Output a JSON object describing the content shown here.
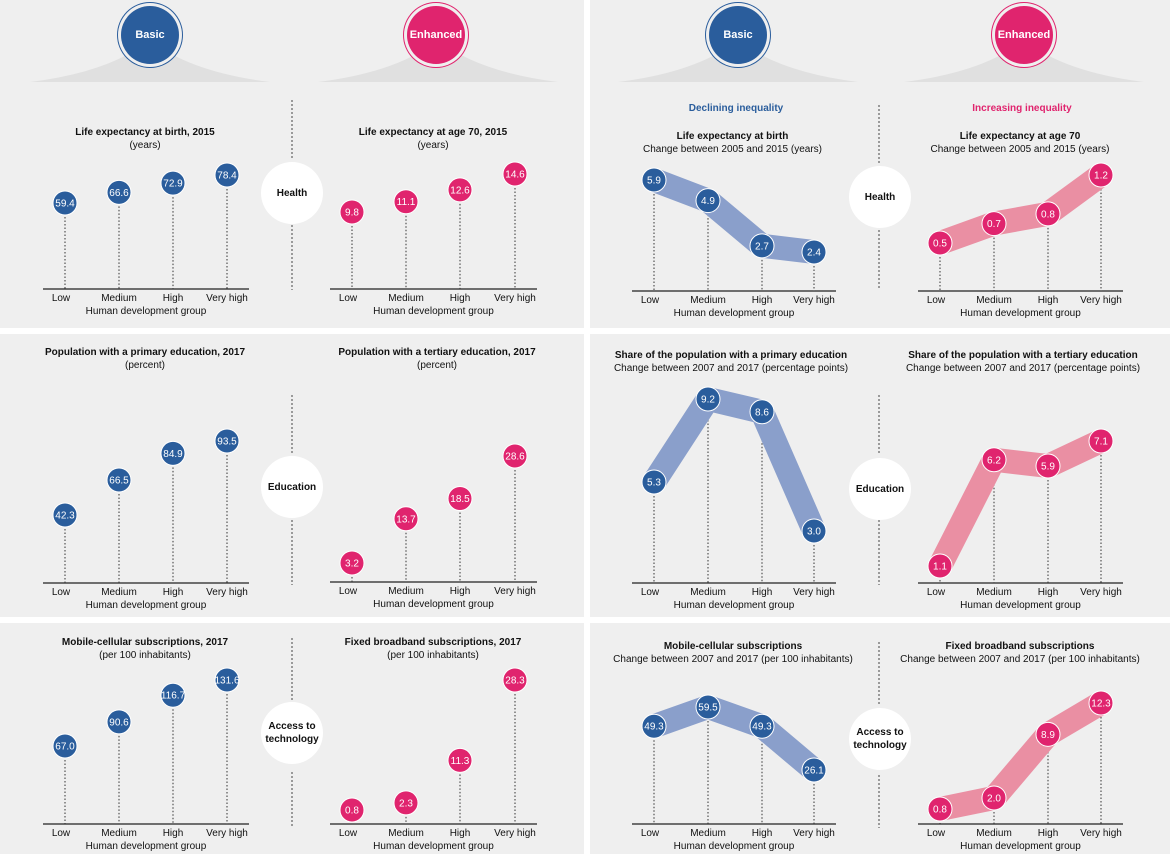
{
  "badges": {
    "basic": "Basic",
    "enhanced": "Enhanced"
  },
  "headings": {
    "declining": "Declining inequality",
    "increasing": "Increasing inequality"
  },
  "topics": {
    "health": "Health",
    "education": "Education",
    "access_line1": "Access to",
    "access_line2": "technology"
  },
  "axis": {
    "categories": [
      "Low",
      "Medium",
      "High",
      "Very high"
    ],
    "group_label": "Human development group"
  },
  "colors": {
    "blue": "#2a5d9c",
    "pink": "#e0246e",
    "blue_band": "#8a9fcb",
    "pink_band": "#ea8fa3"
  },
  "chart_data": [
    {
      "type": "scatter",
      "title": "Life expectancy at birth, 2015",
      "subtitle": "(years)",
      "xlabel": "Human development group",
      "categories": [
        "Low",
        "Medium",
        "High",
        "Very high"
      ],
      "values": [
        59.4,
        66.6,
        72.9,
        78.4
      ],
      "labels": [
        "59.4",
        "66.6",
        "72.9",
        "78.4"
      ],
      "color": "blue"
    },
    {
      "type": "scatter",
      "title": "Life expectancy at age 70, 2015",
      "subtitle": "(years)",
      "xlabel": "Human development group",
      "categories": [
        "Low",
        "Medium",
        "High",
        "Very high"
      ],
      "values": [
        9.8,
        11.1,
        12.6,
        14.6
      ],
      "labels": [
        "9.8",
        "11.1",
        "12.6",
        "14.6"
      ],
      "color": "pink"
    },
    {
      "type": "line",
      "title": "Life expectancy at birth",
      "subtitle": "Change between 2005 and 2015 (years)",
      "xlabel": "Human development group",
      "categories": [
        "Low",
        "Medium",
        "High",
        "Very high"
      ],
      "values": [
        5.9,
        4.9,
        2.7,
        2.4
      ],
      "labels": [
        "5.9",
        "4.9",
        "2.7",
        "2.4"
      ],
      "color": "blue"
    },
    {
      "type": "line",
      "title": "Life expectancy at age 70",
      "subtitle": "Change between 2005 and 2015 (years)",
      "xlabel": "Human development group",
      "categories": [
        "Low",
        "Medium",
        "High",
        "Very high"
      ],
      "values": [
        0.5,
        0.7,
        0.8,
        1.2
      ],
      "labels": [
        "0.5",
        "0.7",
        "0.8",
        "1.2"
      ],
      "color": "pink"
    },
    {
      "type": "scatter",
      "title": "Population with a primary education, 2017",
      "subtitle": "(percent)",
      "xlabel": "Human development group",
      "categories": [
        "Low",
        "Medium",
        "High",
        "Very high"
      ],
      "values": [
        42.3,
        66.5,
        84.9,
        93.5
      ],
      "labels": [
        "42.3",
        "66.5",
        "84.9",
        "93.5"
      ],
      "color": "blue"
    },
    {
      "type": "scatter",
      "title": "Population with a tertiary education, 2017",
      "subtitle": "(percent)",
      "xlabel": "Human development group",
      "categories": [
        "Low",
        "Medium",
        "High",
        "Very high"
      ],
      "values": [
        3.2,
        13.7,
        18.5,
        28.6
      ],
      "labels": [
        "3.2",
        "13.7",
        "18.5",
        "28.6"
      ],
      "color": "pink"
    },
    {
      "type": "line",
      "title": "Share of the population with a primary education",
      "subtitle": "Change between 2007 and 2017 (percentage points)",
      "xlabel": "Human development group",
      "categories": [
        "Low",
        "Medium",
        "High",
        "Very high"
      ],
      "values": [
        5.3,
        9.2,
        8.6,
        3.0
      ],
      "labels": [
        "5.3",
        "9.2",
        "8.6",
        "3.0"
      ],
      "color": "blue"
    },
    {
      "type": "line",
      "title": "Share of the population with a tertiary education",
      "subtitle": "Change between 2007 and 2017 (percentage points)",
      "xlabel": "Human development group",
      "categories": [
        "Low",
        "Medium",
        "High",
        "Very high"
      ],
      "values": [
        1.1,
        6.2,
        5.9,
        7.1
      ],
      "labels": [
        "1.1",
        "6.2",
        "5.9",
        "7.1"
      ],
      "color": "pink"
    },
    {
      "type": "scatter",
      "title": "Mobile-cellular subscriptions, 2017",
      "subtitle": "(per 100 inhabitants)",
      "xlabel": "Human development group",
      "categories": [
        "Low",
        "Medium",
        "High",
        "Very high"
      ],
      "values": [
        67.0,
        90.6,
        116.7,
        131.6
      ],
      "labels": [
        "67.0",
        "90.6",
        "116.7",
        "131.6"
      ],
      "color": "blue"
    },
    {
      "type": "scatter",
      "title": "Fixed broadband subscriptions, 2017",
      "subtitle": "(per 100 inhabitants)",
      "xlabel": "Human development group",
      "categories": [
        "Low",
        "Medium",
        "High",
        "Very high"
      ],
      "values": [
        0.8,
        2.3,
        11.3,
        28.3
      ],
      "labels": [
        "0.8",
        "2.3",
        "11.3",
        "28.3"
      ],
      "color": "pink"
    },
    {
      "type": "line",
      "title": "Mobile-cellular subscriptions",
      "subtitle": "Change between 2007 and 2017 (per 100 inhabitants)",
      "xlabel": "Human development group",
      "categories": [
        "Low",
        "Medium",
        "High",
        "Very high"
      ],
      "values": [
        49.3,
        59.5,
        49.3,
        26.1
      ],
      "labels": [
        "49.3",
        "59.5",
        "49.3",
        "26.1"
      ],
      "color": "blue"
    },
    {
      "type": "line",
      "title": "Fixed broadband subscriptions",
      "subtitle": "Change between 2007 and 2017 (per 100 inhabitants)",
      "xlabel": "Human development group",
      "categories": [
        "Low",
        "Medium",
        "High",
        "Very high"
      ],
      "values": [
        0.8,
        2.0,
        8.9,
        12.3
      ],
      "labels": [
        "0.8",
        "2.0",
        "8.9",
        "12.3"
      ],
      "color": "pink"
    }
  ]
}
